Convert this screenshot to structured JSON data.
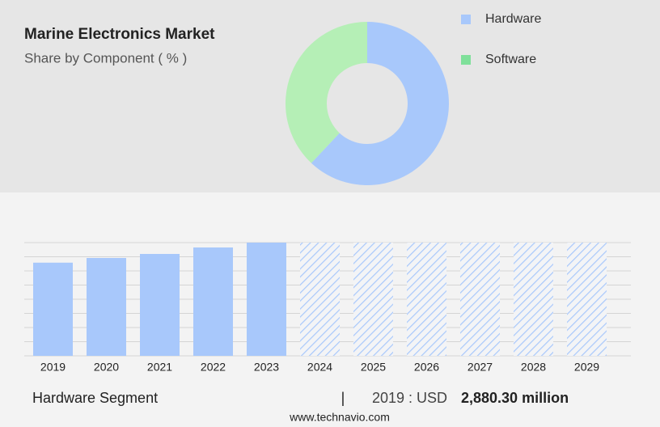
{
  "header": {
    "title": "Marine Electronics Market",
    "subtitle": "Share by Component ( % )"
  },
  "chart_data": [
    {
      "type": "pie",
      "categories": [
        "Hardware",
        "Software"
      ],
      "values": [
        62,
        38
      ],
      "colors": [
        "#a8c8fb",
        "#b5efb6"
      ],
      "legend_colors": [
        "#a8c8fb",
        "#7fe09a"
      ],
      "donut": true
    },
    {
      "type": "bar",
      "categories": [
        "2019",
        "2020",
        "2021",
        "2022",
        "2023",
        "2024",
        "2025",
        "2026",
        "2027",
        "2028",
        "2029"
      ],
      "values": [
        2880.3,
        3025,
        3150,
        3350,
        3500,
        null,
        null,
        null,
        null,
        null,
        null
      ],
      "color": "#a8c8fb",
      "ylim": [
        0,
        3500
      ],
      "grid": true
    }
  ],
  "footer": {
    "segment": "Hardware Segment",
    "separator": "|",
    "year_label": "2019 : USD",
    "value": "2,880.30 million",
    "source": "www.technavio.com"
  }
}
